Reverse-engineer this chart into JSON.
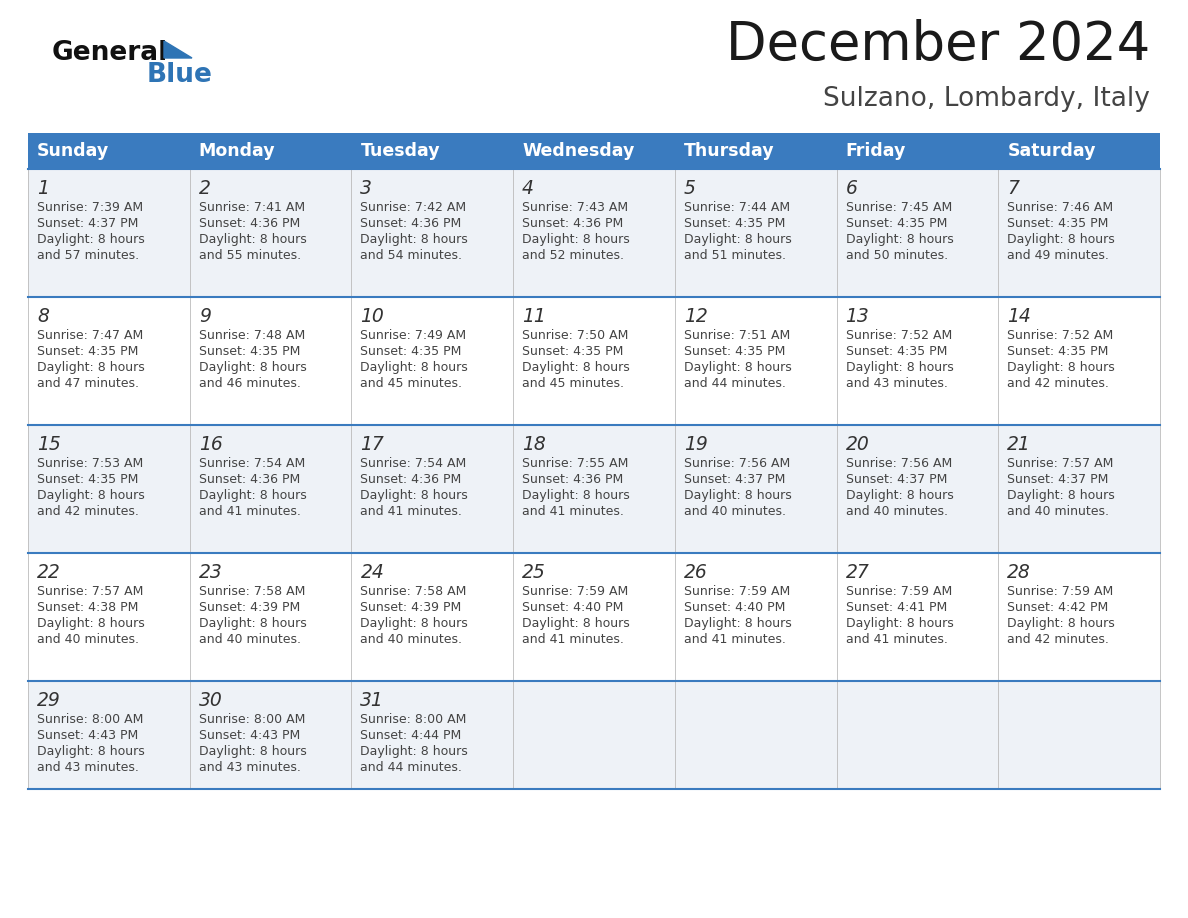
{
  "title": "December 2024",
  "subtitle": "Sulzano, Lombardy, Italy",
  "header_color": "#3a7bbf",
  "header_text_color": "#ffffff",
  "background_color": "#ffffff",
  "line_color": "#3a7bbf",
  "text_color": "#444444",
  "day_num_color": "#333333",
  "cell_bg_odd": "#eef2f7",
  "cell_bg_even": "#ffffff",
  "days_of_week": [
    "Sunday",
    "Monday",
    "Tuesday",
    "Wednesday",
    "Thursday",
    "Friday",
    "Saturday"
  ],
  "weeks": [
    [
      {
        "day": 1,
        "sunrise": "7:39 AM",
        "sunset": "4:37 PM",
        "daylight": "8 hours",
        "daylight2": "and 57 minutes."
      },
      {
        "day": 2,
        "sunrise": "7:41 AM",
        "sunset": "4:36 PM",
        "daylight": "8 hours",
        "daylight2": "and 55 minutes."
      },
      {
        "day": 3,
        "sunrise": "7:42 AM",
        "sunset": "4:36 PM",
        "daylight": "8 hours",
        "daylight2": "and 54 minutes."
      },
      {
        "day": 4,
        "sunrise": "7:43 AM",
        "sunset": "4:36 PM",
        "daylight": "8 hours",
        "daylight2": "and 52 minutes."
      },
      {
        "day": 5,
        "sunrise": "7:44 AM",
        "sunset": "4:35 PM",
        "daylight": "8 hours",
        "daylight2": "and 51 minutes."
      },
      {
        "day": 6,
        "sunrise": "7:45 AM",
        "sunset": "4:35 PM",
        "daylight": "8 hours",
        "daylight2": "and 50 minutes."
      },
      {
        "day": 7,
        "sunrise": "7:46 AM",
        "sunset": "4:35 PM",
        "daylight": "8 hours",
        "daylight2": "and 49 minutes."
      }
    ],
    [
      {
        "day": 8,
        "sunrise": "7:47 AM",
        "sunset": "4:35 PM",
        "daylight": "8 hours",
        "daylight2": "and 47 minutes."
      },
      {
        "day": 9,
        "sunrise": "7:48 AM",
        "sunset": "4:35 PM",
        "daylight": "8 hours",
        "daylight2": "and 46 minutes."
      },
      {
        "day": 10,
        "sunrise": "7:49 AM",
        "sunset": "4:35 PM",
        "daylight": "8 hours",
        "daylight2": "and 45 minutes."
      },
      {
        "day": 11,
        "sunrise": "7:50 AM",
        "sunset": "4:35 PM",
        "daylight": "8 hours",
        "daylight2": "and 45 minutes."
      },
      {
        "day": 12,
        "sunrise": "7:51 AM",
        "sunset": "4:35 PM",
        "daylight": "8 hours",
        "daylight2": "and 44 minutes."
      },
      {
        "day": 13,
        "sunrise": "7:52 AM",
        "sunset": "4:35 PM",
        "daylight": "8 hours",
        "daylight2": "and 43 minutes."
      },
      {
        "day": 14,
        "sunrise": "7:52 AM",
        "sunset": "4:35 PM",
        "daylight": "8 hours",
        "daylight2": "and 42 minutes."
      }
    ],
    [
      {
        "day": 15,
        "sunrise": "7:53 AM",
        "sunset": "4:35 PM",
        "daylight": "8 hours",
        "daylight2": "and 42 minutes."
      },
      {
        "day": 16,
        "sunrise": "7:54 AM",
        "sunset": "4:36 PM",
        "daylight": "8 hours",
        "daylight2": "and 41 minutes."
      },
      {
        "day": 17,
        "sunrise": "7:54 AM",
        "sunset": "4:36 PM",
        "daylight": "8 hours",
        "daylight2": "and 41 minutes."
      },
      {
        "day": 18,
        "sunrise": "7:55 AM",
        "sunset": "4:36 PM",
        "daylight": "8 hours",
        "daylight2": "and 41 minutes."
      },
      {
        "day": 19,
        "sunrise": "7:56 AM",
        "sunset": "4:37 PM",
        "daylight": "8 hours",
        "daylight2": "and 40 minutes."
      },
      {
        "day": 20,
        "sunrise": "7:56 AM",
        "sunset": "4:37 PM",
        "daylight": "8 hours",
        "daylight2": "and 40 minutes."
      },
      {
        "day": 21,
        "sunrise": "7:57 AM",
        "sunset": "4:37 PM",
        "daylight": "8 hours",
        "daylight2": "and 40 minutes."
      }
    ],
    [
      {
        "day": 22,
        "sunrise": "7:57 AM",
        "sunset": "4:38 PM",
        "daylight": "8 hours",
        "daylight2": "and 40 minutes."
      },
      {
        "day": 23,
        "sunrise": "7:58 AM",
        "sunset": "4:39 PM",
        "daylight": "8 hours",
        "daylight2": "and 40 minutes."
      },
      {
        "day": 24,
        "sunrise": "7:58 AM",
        "sunset": "4:39 PM",
        "daylight": "8 hours",
        "daylight2": "and 40 minutes."
      },
      {
        "day": 25,
        "sunrise": "7:59 AM",
        "sunset": "4:40 PM",
        "daylight": "8 hours",
        "daylight2": "and 41 minutes."
      },
      {
        "day": 26,
        "sunrise": "7:59 AM",
        "sunset": "4:40 PM",
        "daylight": "8 hours",
        "daylight2": "and 41 minutes."
      },
      {
        "day": 27,
        "sunrise": "7:59 AM",
        "sunset": "4:41 PM",
        "daylight": "8 hours",
        "daylight2": "and 41 minutes."
      },
      {
        "day": 28,
        "sunrise": "7:59 AM",
        "sunset": "4:42 PM",
        "daylight": "8 hours",
        "daylight2": "and 42 minutes."
      }
    ],
    [
      {
        "day": 29,
        "sunrise": "8:00 AM",
        "sunset": "4:43 PM",
        "daylight": "8 hours",
        "daylight2": "and 43 minutes."
      },
      {
        "day": 30,
        "sunrise": "8:00 AM",
        "sunset": "4:43 PM",
        "daylight": "8 hours",
        "daylight2": "and 43 minutes."
      },
      {
        "day": 31,
        "sunrise": "8:00 AM",
        "sunset": "4:44 PM",
        "daylight": "8 hours",
        "daylight2": "and 44 minutes."
      },
      null,
      null,
      null,
      null
    ]
  ]
}
